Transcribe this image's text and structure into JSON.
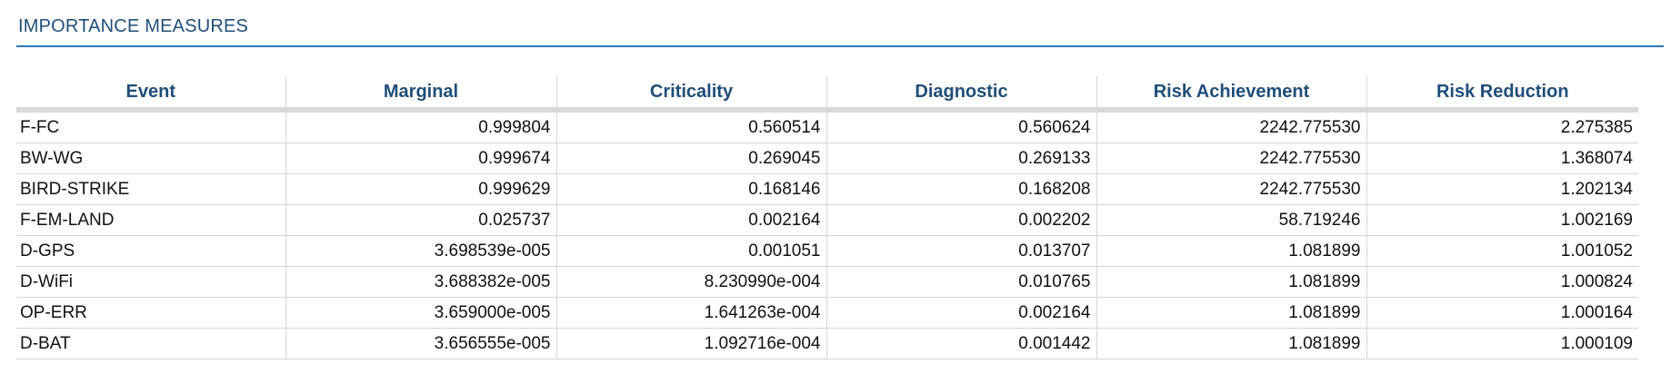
{
  "section": {
    "title": "IMPORTANCE MEASURES"
  },
  "table": {
    "headers": [
      "Event",
      "Marginal",
      "Criticality",
      "Diagnostic",
      "Risk Achievement",
      "Risk Reduction"
    ],
    "rows": [
      [
        "F-FC",
        "0.999804",
        "0.560514",
        "0.560624",
        "2242.775530",
        "2.275385"
      ],
      [
        "BW-WG",
        "0.999674",
        "0.269045",
        "0.269133",
        "2242.775530",
        "1.368074"
      ],
      [
        "BIRD-STRIKE",
        "0.999629",
        "0.168146",
        "0.168208",
        "2242.775530",
        "1.202134"
      ],
      [
        "F-EM-LAND",
        "0.025737",
        "0.002164",
        "0.002202",
        "58.719246",
        "1.002169"
      ],
      [
        "D-GPS",
        "3.698539e-005",
        "0.001051",
        "0.013707",
        "1.081899",
        "1.001052"
      ],
      [
        "D-WiFi",
        "3.688382e-005",
        "8.230990e-004",
        "0.010765",
        "1.081899",
        "1.000824"
      ],
      [
        "OP-ERR",
        "3.659000e-005",
        "1.641263e-004",
        "0.002164",
        "1.081899",
        "1.000164"
      ],
      [
        "D-BAT",
        "3.656555e-005",
        "1.092716e-004",
        "0.001442",
        "1.081899",
        "1.000109"
      ]
    ]
  },
  "colors": {
    "title": "#1f4e79",
    "rule": "#2b7bb9",
    "header_text": "#1f4e79",
    "grid": "#d6d6d6"
  }
}
